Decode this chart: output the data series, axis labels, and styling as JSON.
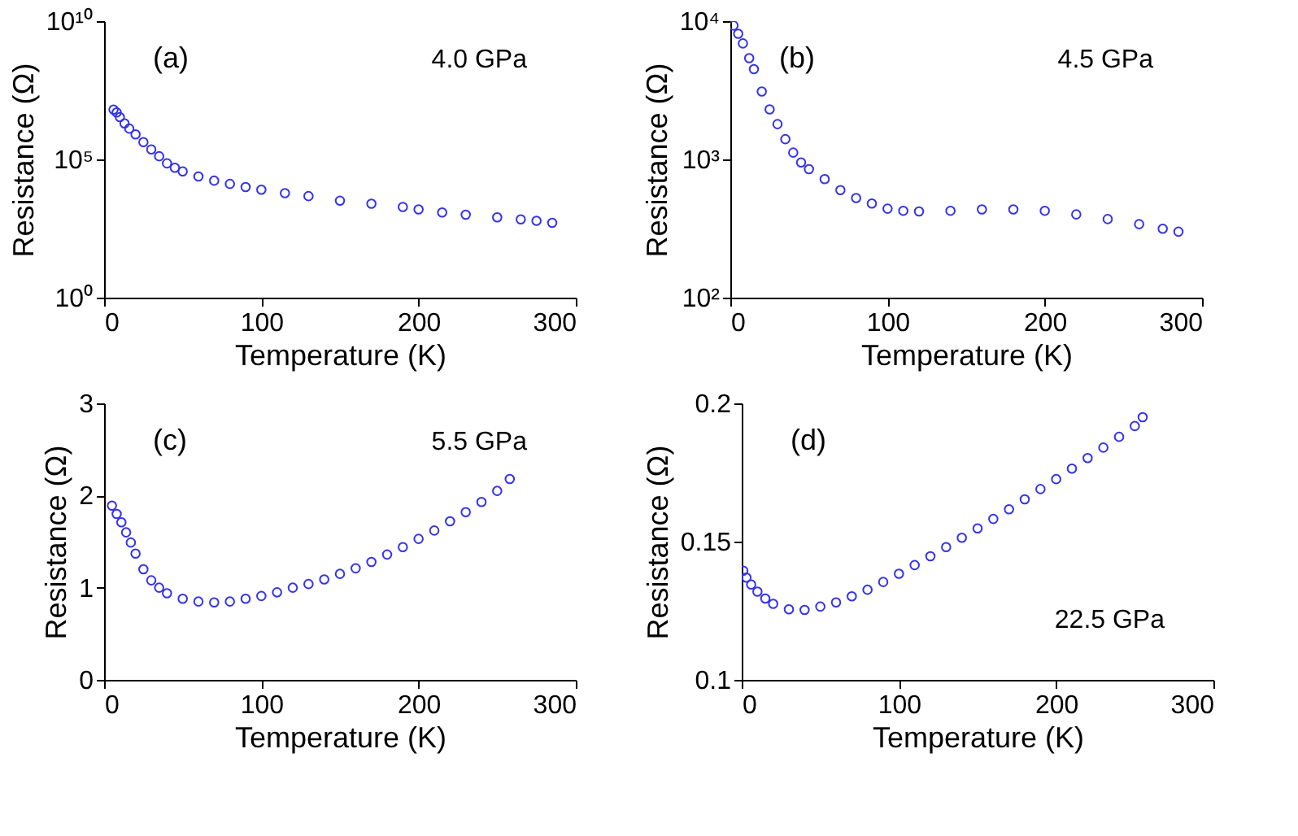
{
  "chart_data": [
    {
      "type": "scatter",
      "xlabel": "Temperature (K)",
      "ylabel": "Resistance (Ω)",
      "annotations": [
        "(a)",
        "4.0 GPa"
      ],
      "log": true,
      "grid": false,
      "marker": "circle",
      "xlim": [
        0,
        300
      ],
      "xticks": [
        0,
        100,
        200,
        300
      ],
      "ylim": [
        1,
        10000000000
      ],
      "yticks": [
        {
          "value": 1,
          "label": "10⁰"
        },
        {
          "value": 100000,
          "label": "10⁵"
        },
        {
          "value": 10000000000,
          "label": "10¹⁰"
        }
      ],
      "series": [
        {
          "color": "#3333ee",
          "x": [
            6,
            8,
            10,
            13,
            16,
            20,
            25,
            30,
            35,
            40,
            45,
            50,
            60,
            70,
            80,
            90,
            100,
            115,
            130,
            150,
            170,
            190,
            200,
            215,
            230,
            250,
            265,
            275,
            285
          ],
          "values": [
            6300000,
            5000000,
            3400000,
            2000000,
            1300000,
            800000,
            420000,
            230000,
            130000,
            72000,
            50000,
            37000,
            24000,
            17000,
            13000,
            10000,
            8000,
            6000,
            4700,
            3200,
            2500,
            1900,
            1550,
            1200,
            1000,
            800,
            680,
            600,
            510
          ]
        }
      ]
    },
    {
      "type": "scatter",
      "xlabel": "Temperature (K)",
      "ylabel": "Resistance (Ω)",
      "annotations": [
        "(b)",
        "4.5 GPa"
      ],
      "log": true,
      "grid": false,
      "marker": "circle",
      "xlim": [
        0,
        300
      ],
      "xticks": [
        0,
        100,
        200,
        300
      ],
      "ylim": [
        100,
        10000
      ],
      "yticks": [
        {
          "value": 100,
          "label": "10²"
        },
        {
          "value": 1000,
          "label": "10³"
        },
        {
          "value": 10000,
          "label": "10⁴"
        }
      ],
      "series": [
        {
          "color": "#3333ee",
          "x": [
            2,
            5,
            8,
            12,
            15,
            20,
            25,
            30,
            35,
            40,
            45,
            50,
            60,
            70,
            80,
            90,
            100,
            110,
            120,
            140,
            160,
            180,
            200,
            220,
            240,
            260,
            275,
            285
          ],
          "values": [
            9300,
            8100,
            6900,
            5400,
            4500,
            3100,
            2300,
            1800,
            1400,
            1120,
            950,
            850,
            720,
            600,
            525,
            480,
            440,
            425,
            420,
            425,
            435,
            435,
            425,
            400,
            370,
            340,
            315,
            300
          ]
        }
      ]
    },
    {
      "type": "scatter",
      "xlabel": "Temperature (K)",
      "ylabel": "Resistance (Ω)",
      "annotations": [
        "(c)",
        "5.5 GPa"
      ],
      "grid": false,
      "marker": "circle",
      "xlim": [
        0,
        300
      ],
      "xticks": [
        0,
        100,
        200,
        300
      ],
      "ylim": [
        0,
        3
      ],
      "yticks": [
        0,
        1,
        2,
        3
      ],
      "series": [
        {
          "color": "#3333ee",
          "x": [
            5,
            8,
            11,
            14,
            17,
            20,
            25,
            30,
            35,
            40,
            50,
            60,
            70,
            80,
            90,
            100,
            110,
            120,
            130,
            140,
            150,
            160,
            170,
            180,
            190,
            200,
            210,
            220,
            230,
            240,
            250,
            258
          ],
          "values": [
            1.89,
            1.8,
            1.71,
            1.6,
            1.49,
            1.37,
            1.2,
            1.08,
            1.0,
            0.94,
            0.88,
            0.85,
            0.84,
            0.85,
            0.88,
            0.91,
            0.95,
            1.0,
            1.04,
            1.09,
            1.15,
            1.21,
            1.28,
            1.36,
            1.44,
            1.53,
            1.62,
            1.72,
            1.82,
            1.93,
            2.05,
            2.18
          ]
        }
      ]
    },
    {
      "type": "scatter",
      "xlabel": "Temperature (K)",
      "ylabel": "Resistance (Ω)",
      "annotations": [
        "(d)",
        "22.5 GPa"
      ],
      "grid": false,
      "marker": "circle",
      "xlim": [
        0,
        300
      ],
      "xticks": [
        0,
        100,
        200,
        300
      ],
      "ylim": [
        0.1,
        0.2
      ],
      "yticks": [
        0.1,
        0.15,
        0.2
      ],
      "series": [
        {
          "color": "#3333ee",
          "x": [
            1,
            3,
            6,
            10,
            15,
            20,
            30,
            40,
            50,
            60,
            70,
            80,
            90,
            100,
            110,
            120,
            130,
            140,
            150,
            160,
            170,
            180,
            190,
            200,
            210,
            220,
            230,
            240,
            250,
            255
          ],
          "values": [
            0.1395,
            0.137,
            0.1345,
            0.1319,
            0.1294,
            0.1275,
            0.1255,
            0.1253,
            0.1265,
            0.128,
            0.1302,
            0.1326,
            0.1354,
            0.1384,
            0.1415,
            0.1447,
            0.148,
            0.1514,
            0.1548,
            0.1582,
            0.1617,
            0.1653,
            0.169,
            0.1726,
            0.1764,
            0.1802,
            0.184,
            0.1879,
            0.1918,
            0.195
          ]
        }
      ]
    }
  ]
}
